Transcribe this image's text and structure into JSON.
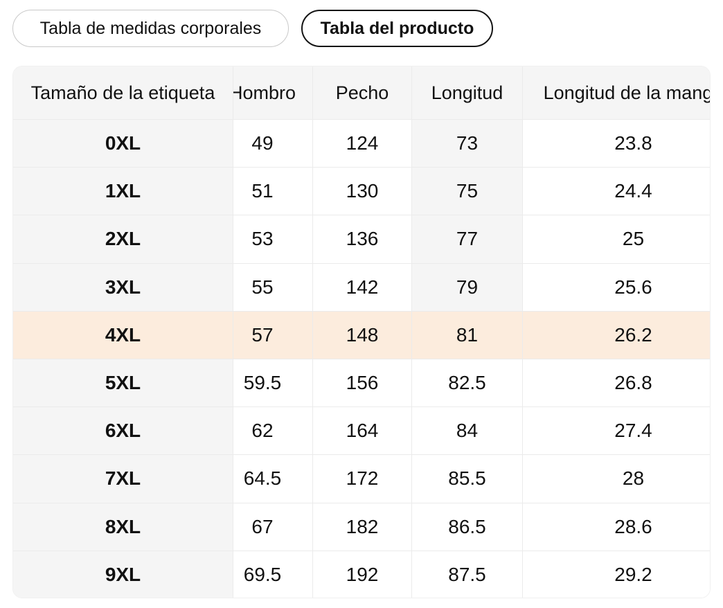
{
  "tabs": [
    {
      "label": "Tabla de medidas corporales",
      "selected": false
    },
    {
      "label": "Tabla del producto",
      "selected": true
    }
  ],
  "table": {
    "header": {
      "size": "Tamaño de la etiqueta",
      "hombro": "Hombro",
      "pecho": "Pecho",
      "longitud": "Longitud",
      "manga": "Longitud de la manga"
    },
    "sizes": [
      "0XL",
      "1XL",
      "2XL",
      "3XL",
      "4XL",
      "5XL",
      "6XL",
      "7XL",
      "8XL",
      "9XL"
    ],
    "hombro": [
      "49",
      "51",
      "53",
      "55",
      "57",
      "59.5",
      "62",
      "64.5",
      "67",
      "69.5"
    ],
    "pecho": [
      "124",
      "130",
      "136",
      "142",
      "148",
      "156",
      "164",
      "172",
      "182",
      "192"
    ],
    "longitud": [
      "73",
      "75",
      "77",
      "79",
      "81",
      "82.5",
      "84",
      "85.5",
      "86.5",
      "87.5"
    ],
    "manga": [
      "23.8",
      "24.4",
      "25",
      "25.6",
      "26.2",
      "26.8",
      "27.4",
      "28",
      "28.6",
      "29.2"
    ],
    "highlighted_size": "4XL"
  },
  "colors": {
    "highlight_row": "#fcecdd",
    "cell_gray": "#f5f5f5",
    "separator": "#ebebeb",
    "text": "#111111",
    "tab_border": "#c9c9c9",
    "tab_border_active": "#141414"
  }
}
